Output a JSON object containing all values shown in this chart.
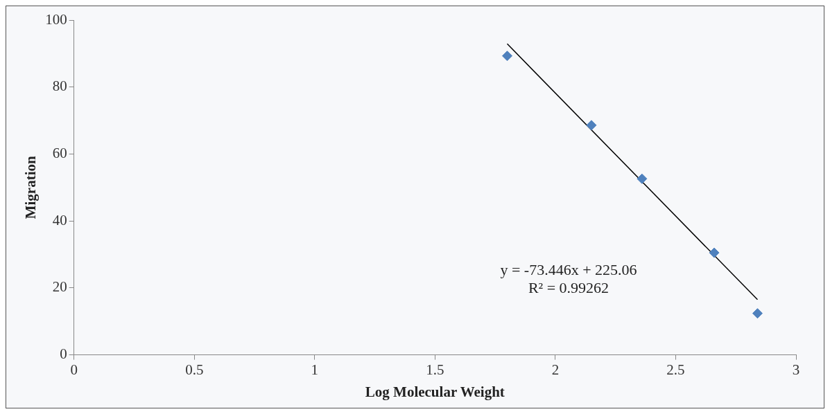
{
  "chart_data": {
    "type": "scatter",
    "xlabel": "Log Molecular Weight",
    "ylabel": "Migration",
    "series": [
      {
        "type": "scatter",
        "color": "#4f81bd",
        "x": [
          1.8,
          2.15,
          2.36,
          2.66,
          2.84
        ],
        "values": [
          89.3,
          68.6,
          52.6,
          30.5,
          12.4
        ],
        "marker": "diamond"
      },
      {
        "type": "line",
        "color": "#000000",
        "x": [
          1.8,
          2.84
        ],
        "values": [
          92.9,
          16.5
        ],
        "marker": "none",
        "line_style": "solid"
      }
    ],
    "xlim": [
      0,
      3
    ],
    "xticks": [
      0,
      0.5,
      1,
      1.5,
      2,
      2.5,
      3
    ],
    "ylim": [
      0,
      100
    ],
    "yticks": [
      0,
      20,
      40,
      60,
      80,
      100
    ],
    "grid": false,
    "legend": false,
    "annotations": [
      "y = -73.446x + 225.06",
      "R² = 0.99262"
    ]
  }
}
